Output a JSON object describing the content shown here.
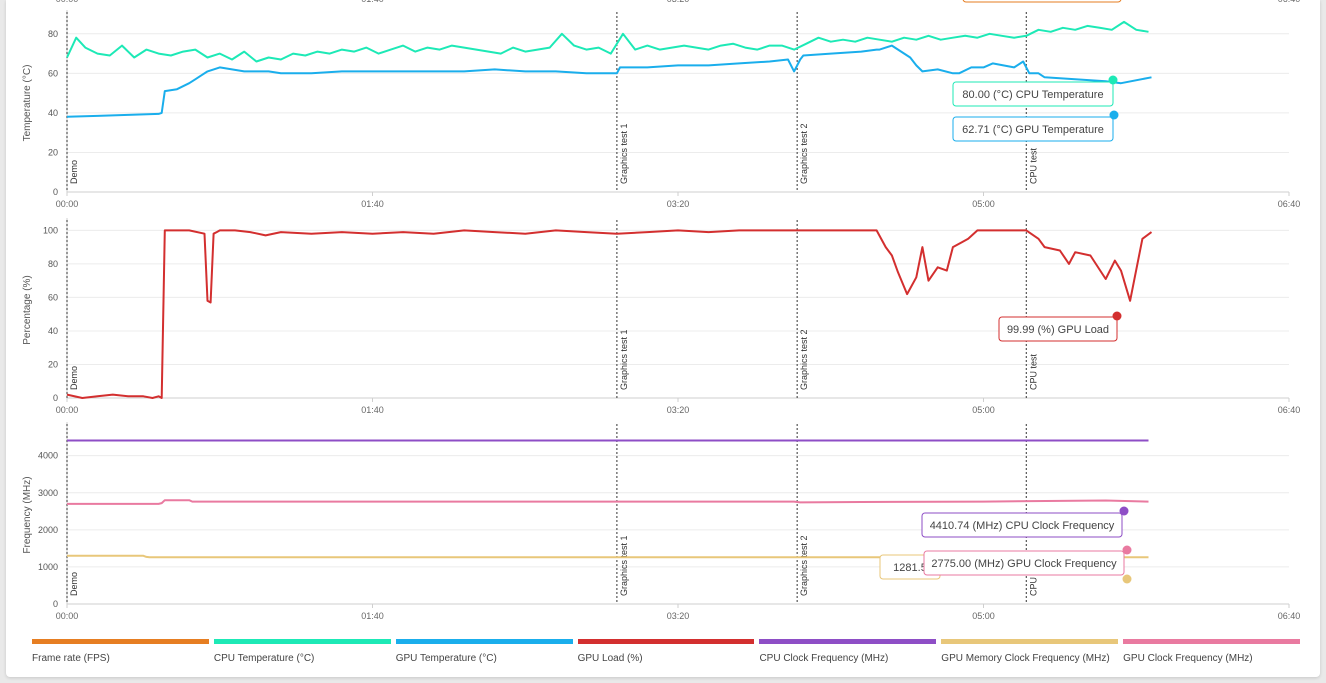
{
  "legend": [
    {
      "label": "Frame rate (FPS)",
      "color": "#e67e22"
    },
    {
      "label": "CPU Temperature (°C)",
      "color": "#1de9b6"
    },
    {
      "label": "GPU Temperature (°C)",
      "color": "#1aaeec"
    },
    {
      "label": "GPU Load (%)",
      "color": "#d32f2f"
    },
    {
      "label": "CPU Clock Frequency (MHz)",
      "color": "#8e4ec6"
    },
    {
      "label": "GPU Memory Clock Frequency (MHz)",
      "color": "#e8c77a"
    },
    {
      "label": "GPU Clock Frequency (MHz)",
      "color": "#e97aa0"
    }
  ],
  "x_ticks": [
    "00:00",
    "01:40",
    "03:20",
    "05:00",
    "06:40"
  ],
  "top_ticks": [
    "00:00",
    "01:40",
    "03:20",
    "05:00",
    "06:40"
  ],
  "markers": [
    {
      "label": "Demo",
      "t": 0
    },
    {
      "label": "Graphics test 1",
      "t": 180
    },
    {
      "label": "Graphics test 2",
      "t": 239
    },
    {
      "label": "CPU test",
      "t": 314
    }
  ],
  "chart_data": [
    {
      "type": "line",
      "ylabel": "Temperature (°C)",
      "xlim": [
        0,
        400
      ],
      "ylim": [
        0,
        90
      ],
      "yticks": [
        0,
        20,
        40,
        60,
        80
      ],
      "series": [
        {
          "name": "CPU Temperature",
          "color": "#1de9b6",
          "x": [
            0,
            3,
            6,
            10,
            14,
            18,
            22,
            26,
            30,
            34,
            38,
            42,
            46,
            50,
            54,
            58,
            62,
            66,
            70,
            74,
            78,
            82,
            86,
            90,
            94,
            98,
            102,
            106,
            110,
            114,
            118,
            122,
            126,
            130,
            134,
            138,
            142,
            146,
            150,
            154,
            158,
            162,
            166,
            170,
            174,
            178,
            182,
            186,
            190,
            194,
            198,
            202,
            206,
            210,
            214,
            218,
            222,
            226,
            230,
            234,
            238,
            242,
            246,
            250,
            254,
            258,
            262,
            266,
            270,
            274,
            278,
            282,
            286,
            290,
            294,
            298,
            302,
            306,
            310,
            314,
            318,
            322,
            326,
            330,
            334,
            338,
            342,
            346,
            350,
            354
          ],
          "values": [
            68,
            78,
            73,
            70,
            69,
            74,
            68,
            72,
            70,
            69,
            71,
            72,
            68,
            70,
            67,
            71,
            66,
            68,
            67,
            70,
            69,
            71,
            70,
            72,
            71,
            73,
            70,
            72,
            74,
            71,
            73,
            72,
            74,
            73,
            72,
            71,
            70,
            73,
            71,
            72,
            73,
            80,
            74,
            72,
            73,
            70,
            80,
            72,
            74,
            72,
            73,
            74,
            73,
            72,
            74,
            75,
            73,
            72,
            74,
            74,
            72,
            75,
            78,
            76,
            77,
            76,
            78,
            77,
            76,
            78,
            77,
            79,
            77,
            78,
            79,
            78,
            80,
            79,
            78,
            79,
            82,
            81,
            83,
            82,
            84,
            83,
            82,
            86,
            82,
            81
          ],
          "last_label": "80.00 (°C) CPU Temperature"
        },
        {
          "name": "GPU Temperature",
          "color": "#1aaeec",
          "x": [
            0,
            10,
            20,
            30,
            31,
            32,
            36,
            40,
            42,
            44,
            46,
            50,
            54,
            58,
            62,
            66,
            70,
            80,
            90,
            100,
            110,
            120,
            130,
            140,
            150,
            160,
            170,
            180,
            181,
            190,
            200,
            210,
            220,
            230,
            236,
            238,
            240,
            241,
            250,
            260,
            265,
            266,
            270,
            276,
            278,
            280,
            285,
            290,
            292,
            296,
            300,
            303,
            310,
            313,
            315,
            318,
            320,
            330,
            340,
            345,
            355
          ],
          "values": [
            38,
            38.5,
            39,
            39.5,
            40,
            51,
            52,
            55,
            57,
            59,
            61,
            63,
            62,
            61,
            61,
            61,
            60,
            60,
            61,
            61,
            61,
            61,
            61,
            62,
            61,
            61,
            60,
            60,
            63,
            63,
            64,
            64,
            65,
            66,
            67,
            61,
            67,
            69,
            70,
            71,
            72,
            72,
            74,
            68,
            64,
            61,
            62,
            60,
            60,
            63,
            63,
            65,
            63,
            66,
            60,
            60,
            58,
            57,
            56,
            55,
            58
          ],
          "last_label": "62.71 (°C) GPU Temperature"
        }
      ]
    },
    {
      "type": "line",
      "ylabel": "Percentage (%)",
      "xlim": [
        0,
        400
      ],
      "ylim": [
        0,
        105
      ],
      "yticks": [
        0,
        20,
        40,
        60,
        80,
        100
      ],
      "series": [
        {
          "name": "GPU Load",
          "color": "#d32f2f",
          "x": [
            0,
            5,
            10,
            15,
            20,
            25,
            28,
            30,
            31,
            32,
            40,
            45,
            46,
            47,
            48,
            49,
            50,
            55,
            60,
            65,
            70,
            80,
            90,
            100,
            110,
            120,
            130,
            140,
            150,
            160,
            170,
            180,
            190,
            200,
            210,
            220,
            230,
            240,
            250,
            260,
            265,
            268,
            270,
            272,
            275,
            278,
            280,
            282,
            285,
            288,
            290,
            293,
            295,
            298,
            300,
            305,
            310,
            314,
            318,
            320,
            325,
            328,
            330,
            335,
            340,
            343,
            345,
            348,
            352,
            355
          ],
          "values": [
            2,
            0,
            1,
            2,
            1,
            1,
            0,
            1,
            0,
            100,
            100,
            98,
            58,
            57,
            98,
            99,
            100,
            100,
            99,
            97,
            99,
            98,
            99,
            98,
            99,
            98,
            100,
            99,
            98,
            100,
            99,
            98,
            99,
            100,
            99,
            100,
            100,
            100,
            100,
            100,
            100,
            90,
            85,
            75,
            62,
            72,
            90,
            70,
            78,
            76,
            90,
            93,
            95,
            100,
            100,
            100,
            100,
            100,
            95,
            90,
            88,
            80,
            87,
            85,
            71,
            82,
            76,
            58,
            95,
            99
          ],
          "last_label": "99.99 (%) GPU Load"
        }
      ]
    },
    {
      "type": "line",
      "ylabel": "Frequency (MHz)",
      "xlim": [
        0,
        400
      ],
      "ylim": [
        0,
        4800
      ],
      "yticks": [
        0,
        1000,
        2000,
        3000,
        4000
      ],
      "series": [
        {
          "name": "CPU Clock Frequency",
          "color": "#8e4ec6",
          "x": [
            0,
            100,
            200,
            300,
            354
          ],
          "values": [
            4410,
            4410,
            4410,
            4410,
            4410
          ],
          "last_label": "4410.74 (MHz) CPU Clock Frequency"
        },
        {
          "name": "GPU Clock Frequency",
          "color": "#e97aa0",
          "x": [
            0,
            30,
            31,
            32,
            40,
            41,
            100,
            150,
            200,
            238,
            240,
            260,
            300,
            340,
            354
          ],
          "values": [
            2700,
            2700,
            2720,
            2800,
            2800,
            2760,
            2760,
            2760,
            2760,
            2760,
            2740,
            2750,
            2760,
            2790,
            2760
          ],
          "last_label": "2775.00 (MHz) GPU Clock Frequency"
        },
        {
          "name": "GPU Memory Clock Frequency",
          "color": "#e8c77a",
          "x": [
            0,
            25,
            26,
            27,
            100,
            200,
            300,
            354
          ],
          "values": [
            1300,
            1300,
            1270,
            1260,
            1260,
            1260,
            1260,
            1260
          ],
          "last_label": "1281.5"
        }
      ]
    }
  ]
}
